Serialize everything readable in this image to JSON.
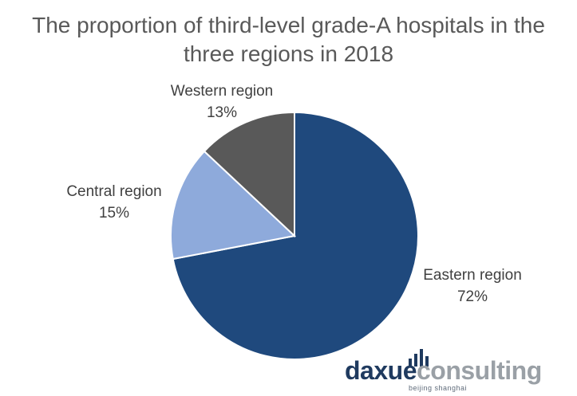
{
  "chart_data": {
    "type": "pie",
    "title": "The proportion of third-level grade-A hospitals in the three regions in 2018",
    "title_lines": [
      "The proportion of third-level grade-A hospitals in the",
      "three regions in 2018"
    ],
    "slices": [
      {
        "label": "Eastern region",
        "value": 72,
        "value_label": "72%",
        "color": "#1f497d"
      },
      {
        "label": "Central region",
        "value": 15,
        "value_label": "15%",
        "color": "#8eaadb"
      },
      {
        "label": "Western region",
        "value": 13,
        "value_label": "13%",
        "color": "#595959"
      }
    ],
    "start_angle_deg": 0,
    "direction": "clockwise",
    "legend": "none"
  },
  "logo": {
    "word_primary": "daxue",
    "word_secondary": "consulting",
    "tagline": "beijing shanghai",
    "color_primary": "#1f3a5f",
    "color_secondary": "#9aa0a6"
  }
}
